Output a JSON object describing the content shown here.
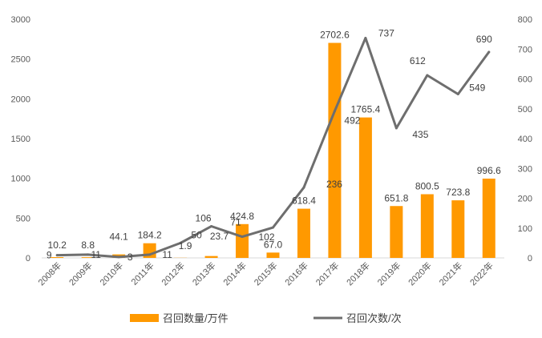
{
  "chart_data": {
    "type": "bar",
    "categories": [
      "2008年",
      "2009年",
      "2010年",
      "2011年",
      "2012年",
      "2013年",
      "2014年",
      "2015年",
      "2016年",
      "2017年",
      "2018年",
      "2019年",
      "2020年",
      "2021年",
      "2022年"
    ],
    "series": [
      {
        "name": "召回数量/万件",
        "type": "bar",
        "axis": "left",
        "color": "#FF9900",
        "values": [
          10.2,
          8.8,
          44.1,
          184.2,
          1.9,
          23.7,
          424.8,
          67.0,
          618.4,
          2702.6,
          1765.4,
          651.8,
          800.5,
          723.8,
          996.6
        ],
        "labels": [
          "10.2",
          "8.8",
          "44.1",
          "184.2",
          "1.9",
          "23.7",
          "424.8",
          "67.0",
          "618.4",
          "2702.6",
          "1765.4",
          "651.8",
          "800.5",
          "723.8",
          "996.6"
        ]
      },
      {
        "name": "召回次数/次",
        "type": "line",
        "axis": "right",
        "color": "#6E6E6E",
        "values": [
          9,
          11,
          3,
          11,
          50,
          106,
          71,
          102,
          236,
          492,
          737,
          435,
          612,
          549,
          690
        ],
        "labels": [
          "9",
          "11",
          "3",
          "11",
          "50",
          "106",
          "71",
          "102",
          "236",
          "492",
          "737",
          "435",
          "612",
          "549",
          "690"
        ]
      }
    ],
    "y_left": {
      "lim": [
        0,
        3000
      ],
      "ticks": [
        "0",
        "500",
        "1000",
        "1500",
        "2000",
        "2500",
        "3000"
      ]
    },
    "y_right": {
      "lim": [
        0,
        800
      ],
      "ticks": [
        "0",
        "100",
        "200",
        "300",
        "400",
        "500",
        "600",
        "700",
        "800"
      ]
    },
    "grid": false,
    "legend": "bottom"
  }
}
